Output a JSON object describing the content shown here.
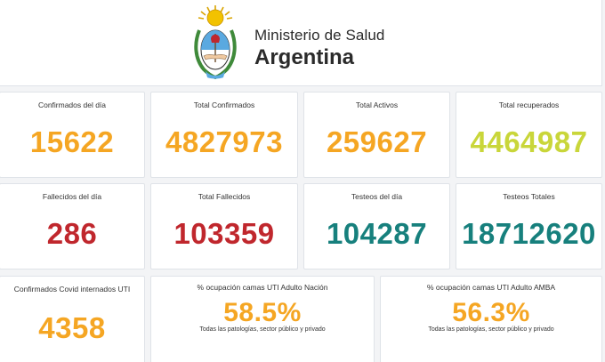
{
  "header": {
    "ministry": "Ministerio de Salud",
    "country": "Argentina",
    "logo_icon": "argentina-coat-of-arms"
  },
  "colors": {
    "orange": "#f5a623",
    "lime": "#c9d63a",
    "red": "#c0272d",
    "teal": "#17807d"
  },
  "cards": {
    "confirmed_day": {
      "label": "Confirmados del día",
      "value": "15622"
    },
    "total_confirmed": {
      "label": "Total Confirmados",
      "value": "4827973"
    },
    "total_active": {
      "label": "Total Activos",
      "value": "259627"
    },
    "total_recovered": {
      "label": "Total recuperados",
      "value": "4464987"
    },
    "deaths_day": {
      "label": "Fallecidos del día",
      "value": "286"
    },
    "total_deaths": {
      "label": "Total Fallecidos",
      "value": "103359"
    },
    "tests_day": {
      "label": "Testeos del día",
      "value": "104287"
    },
    "total_tests": {
      "label": "Testeos Totales",
      "value": "18712620"
    },
    "icu_confirmed": {
      "label": "Confirmados Covid internados UTI",
      "value": "4358"
    },
    "icu_nation": {
      "label": "% ocupación camas UTI Adulto Nación",
      "value": "58.5%",
      "note": "Todas las patologías, sector público y privado"
    },
    "icu_amba": {
      "label": "% ocupación camas UTI Adulto AMBA",
      "value": "56.3%",
      "note": "Todas las patologías, sector público y privado"
    }
  }
}
